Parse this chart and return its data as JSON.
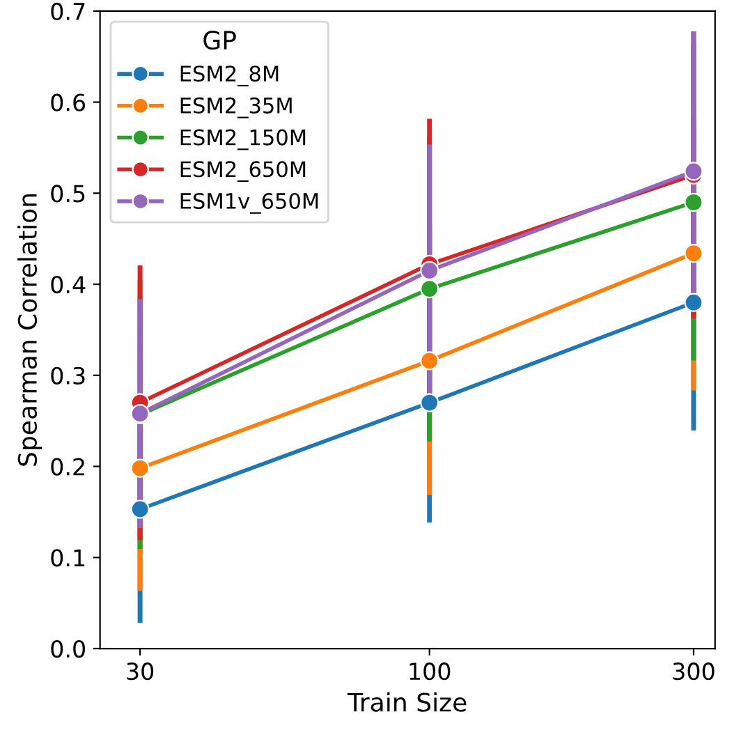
{
  "chart_data": {
    "type": "line",
    "xlabel": "Train Size",
    "ylabel": "Spearman Correlation",
    "legend_title": "GP",
    "legend": "top left",
    "marker": "circle",
    "line_style": "solid",
    "grid": false,
    "log": "x",
    "x": [
      30,
      100,
      300
    ],
    "xlim": [
      25.4,
      328
    ],
    "xticks": [
      30,
      100,
      300
    ],
    "ylim": [
      0,
      0.7
    ],
    "yticks": [
      {
        "value": 0,
        "label": "0.0"
      },
      0.1,
      0.2,
      0.3,
      0.4,
      0.5,
      0.6,
      0.7
    ],
    "series": [
      {
        "name": "ESM2_8M",
        "color": "#1f77b4",
        "values": [
          0.153,
          0.27,
          0.38
        ],
        "errors": [
          0.122,
          0.129,
          0.138
        ]
      },
      {
        "name": "ESM2_35M",
        "color": "#ff7f0e",
        "values": [
          0.198,
          0.316,
          0.434
        ],
        "errors": [
          0.132,
          0.145,
          0.148
        ]
      },
      {
        "name": "ESM2_150M",
        "color": "#2ca02c",
        "values": [
          0.257,
          0.395,
          0.49
        ],
        "errors": [
          0.145,
          0.165,
          0.171
        ]
      },
      {
        "name": "ESM2_650M",
        "color": "#d62728",
        "values": [
          0.27,
          0.422,
          0.52
        ],
        "errors": [
          0.148,
          0.157,
          0.155
        ]
      },
      {
        "name": "ESM1v_650M",
        "color": "#9467bd",
        "values": [
          0.258,
          0.415,
          0.524
        ],
        "errors": [
          0.123,
          0.136,
          0.151
        ]
      }
    ]
  }
}
